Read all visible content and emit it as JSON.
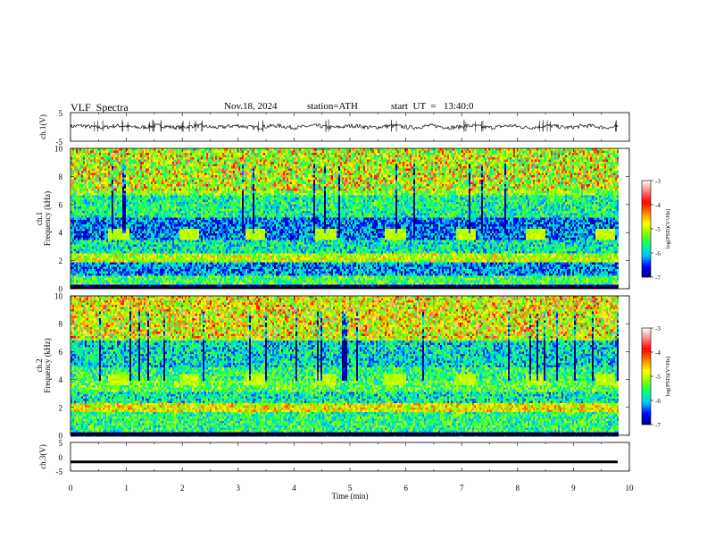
{
  "header": {
    "title": "VLF  Spectra",
    "date": "Nov.18, 2024",
    "station": "station=ATH",
    "start": "start  UT  =   13:40:0"
  },
  "colors": {
    "waveform": "#000000",
    "spectrum_scale": [
      "#000080",
      "#0000ff",
      "#00c8ff",
      "#00ff80",
      "#7fff00",
      "#ffff00",
      "#ff8000",
      "#ff0000",
      "#ff8080",
      "#ffffff"
    ]
  },
  "chart_data": [
    {
      "type": "line",
      "panel": "ch1-waveform",
      "ylabel": "ch.1(V)",
      "ylim": [
        -5,
        5
      ],
      "yticks": [
        "5",
        "-5"
      ],
      "xlim": [
        0,
        10
      ],
      "note_values": "noisy signal centred near 0 V with spikes up to about 1.5 V",
      "baseline": 0.1,
      "spike_times": [
        0.5,
        1.0,
        1.45,
        1.55,
        2.05,
        2.3,
        3.4,
        4.55,
        5.8,
        7.05,
        7.3,
        8.45,
        8.6,
        9.7
      ]
    },
    {
      "type": "heatmap",
      "panel": "ch1-spectrogram",
      "ylabel": "ch.1\nFrequency  (kHz)",
      "xlim": [
        0,
        9.8
      ],
      "ylim": [
        0,
        10
      ],
      "yticks": [
        "0",
        "2",
        "4",
        "6",
        "8",
        "10"
      ],
      "colorbar": {
        "label": "log(PSD)(V²/Hz)",
        "range": [
          -7,
          -3
        ],
        "ticks": [
          "-3",
          "-4",
          "-5",
          "-6",
          "-7"
        ]
      },
      "periodic_bursts_min": [
        0.85,
        2.1,
        3.3,
        4.55,
        5.8,
        7.05,
        8.3,
        9.55
      ],
      "bands_khz": [
        {
          "from": 6.8,
          "to": 10,
          "level": -5.2
        },
        {
          "from": 5.2,
          "to": 6.8,
          "level": -5.7
        },
        {
          "from": 3.6,
          "to": 5.2,
          "level": -6.3
        },
        {
          "from": 2.6,
          "to": 3.6,
          "level": -5.8
        },
        {
          "from": 2.0,
          "to": 2.6,
          "level": -5.0
        },
        {
          "from": 1.0,
          "to": 2.0,
          "level": -6.2
        },
        {
          "from": 0.4,
          "to": 1.0,
          "level": -5.5
        },
        {
          "from": 0.0,
          "to": 0.4,
          "level": -7.0
        }
      ]
    },
    {
      "type": "heatmap",
      "panel": "ch2-spectrogram",
      "ylabel": "ch.2\nFrequency  (kHz)",
      "xlim": [
        0,
        9.8
      ],
      "ylim": [
        0,
        10
      ],
      "yticks": [
        "0",
        "2",
        "4",
        "6",
        "8",
        "10"
      ],
      "colorbar": {
        "label": "log(PSD)(V²/Hz)",
        "range": [
          -7,
          -3
        ],
        "ticks": [
          "-3",
          "-4",
          "-5",
          "-6",
          "-7"
        ]
      },
      "periodic_bursts_min": [
        0.85,
        2.1,
        3.3,
        4.55,
        5.8,
        7.05,
        8.3,
        9.55
      ],
      "bands_khz": [
        {
          "from": 6.8,
          "to": 10,
          "level": -5.0
        },
        {
          "from": 5.0,
          "to": 6.8,
          "level": -5.9
        },
        {
          "from": 4.0,
          "to": 5.0,
          "level": -5.6
        },
        {
          "from": 3.2,
          "to": 4.0,
          "level": -5.4
        },
        {
          "from": 2.4,
          "to": 3.2,
          "level": -5.8
        },
        {
          "from": 1.8,
          "to": 2.4,
          "level": -4.8
        },
        {
          "from": 0.3,
          "to": 1.8,
          "level": -5.6
        },
        {
          "from": 0.0,
          "to": 0.3,
          "level": -7.0
        }
      ]
    },
    {
      "type": "line",
      "panel": "ch3-waveform",
      "ylabel": "ch.3(V)",
      "ylim": [
        -5,
        5
      ],
      "yticks": [
        "5",
        "0",
        "-5"
      ],
      "xlim": [
        0,
        10
      ],
      "baseline": -1.8
    }
  ],
  "xaxis": {
    "label": "Time  (min)",
    "ticks": [
      "0",
      "1",
      "2",
      "3",
      "4",
      "5",
      "6",
      "7",
      "8",
      "9",
      "10"
    ]
  }
}
